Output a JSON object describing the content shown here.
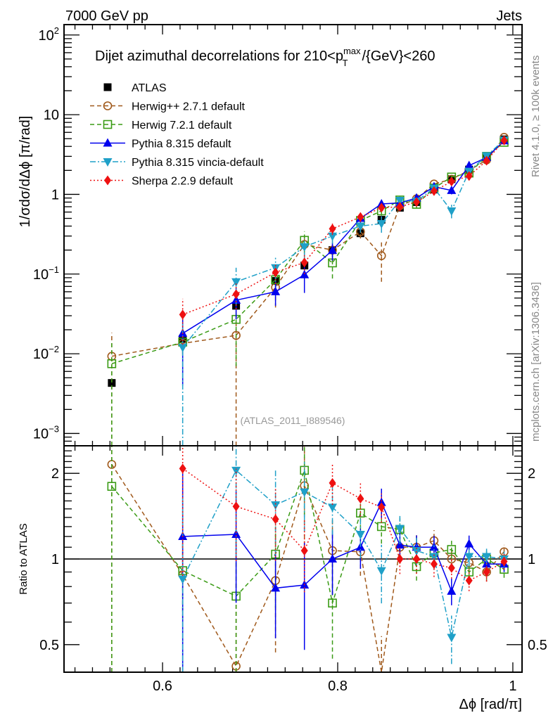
{
  "chart_data": {
    "type": "scatter",
    "header_left": "7000 GeV pp",
    "header_right": "Jets",
    "title": "Dijet azimuthal decorrelations for 210<p",
    "title_sup": "max",
    "title_sub": "T",
    "title_tail": "/{GeV}<260",
    "analysis_label": "(ATLAS_2011_I889546)",
    "side_label_top": "Rivet 4.1.0, ≥ 100k events",
    "side_label_bottom": "mcplots.cern.ch [arXiv:1306.3436]",
    "ylabel": "1/σdσ/dΔϕ [π/rad]",
    "ratio_ylabel": "Ratio to ATLAS",
    "xlabel": "Δϕ [rad/π]",
    "xlim": [
      0.4875,
      1.0105
    ],
    "ylim": [
      0.0007,
      135
    ],
    "ratio_ylim": [
      0.4,
      2.5
    ],
    "yscale": "log",
    "ratio_yscale": "log",
    "x_ticks": [
      {
        "v": 0.6,
        "label": "0.6"
      },
      {
        "v": 0.8,
        "label": "0.8"
      },
      {
        "v": 1.0,
        "label": "1"
      }
    ],
    "y_ticks": [
      {
        "v": 100,
        "base": "10",
        "exp": "2"
      },
      {
        "v": 10,
        "base": "10",
        "exp": ""
      },
      {
        "v": 1,
        "base": "1",
        "exp": ""
      },
      {
        "v": 0.1,
        "base": "10",
        "exp": "−1"
      },
      {
        "v": 0.01,
        "base": "10",
        "exp": "−2"
      },
      {
        "v": 0.001,
        "base": "10",
        "exp": "−3"
      }
    ],
    "ratio_ticks": [
      {
        "v": 2,
        "label": "2"
      },
      {
        "v": 1,
        "label": "1"
      },
      {
        "v": 0.5,
        "label": "0.5"
      }
    ],
    "x": [
      0.542,
      0.623,
      0.684,
      0.729,
      0.762,
      0.794,
      0.826,
      0.85,
      0.871,
      0.89,
      0.91,
      0.93,
      0.95,
      0.97,
      0.99
    ],
    "series": [
      {
        "name": "ATLAS",
        "color": "#000000",
        "marker": "square-filled",
        "line": "none",
        "values": [
          0.0043,
          0.0154,
          0.04,
          0.082,
          0.128,
          0.2,
          0.325,
          0.48,
          0.68,
          0.8,
          1.15,
          1.55,
          2.05,
          2.95,
          4.9
        ],
        "errors": [
          0.0004,
          0.001,
          0.003,
          0.005,
          0.008,
          0.012,
          0.02,
          0.03,
          0.04,
          0.04,
          0.05,
          0.07,
          0.09,
          0.12,
          0.2
        ]
      },
      {
        "name": "Herwig++ 2.7.1 default",
        "color": "#a0591b",
        "marker": "circle-open",
        "line": "dashed",
        "values": [
          0.0093,
          0.0135,
          0.017,
          0.068,
          0.235,
          0.2,
          0.34,
          0.17,
          0.72,
          0.88,
          1.35,
          1.55,
          2.0,
          2.7,
          5.2
        ],
        "errors": [
          0.009,
          0.004,
          0.017,
          0.03,
          0.09,
          0.06,
          0.06,
          0.09,
          0.09,
          0.09,
          0.12,
          0.12,
          0.15,
          0.2,
          0.3
        ]
      },
      {
        "name": "Herwig 7.2.1 default",
        "color": "#3a9b15",
        "marker": "square-open",
        "line": "dashed",
        "values": [
          0.0075,
          0.014,
          0.027,
          0.085,
          0.265,
          0.138,
          0.47,
          0.62,
          0.85,
          0.75,
          1.2,
          1.65,
          1.85,
          3.0,
          4.5
        ],
        "errors": [
          0.007,
          0.004,
          0.02,
          0.03,
          0.08,
          0.05,
          0.08,
          0.08,
          0.08,
          0.08,
          0.1,
          0.12,
          0.15,
          0.2,
          0.3
        ]
      },
      {
        "name": "Pythia 8.315 default",
        "color": "#0000ee",
        "marker": "triangle-up",
        "line": "solid",
        "values": [
          null,
          0.018,
          0.047,
          0.06,
          0.098,
          0.198,
          0.5,
          0.76,
          0.78,
          0.9,
          1.25,
          1.12,
          2.3,
          2.9,
          4.7
        ],
        "errors": [
          null,
          0.014,
          0.02,
          0.02,
          0.04,
          0.05,
          0.08,
          0.09,
          0.09,
          0.09,
          0.12,
          0.12,
          0.16,
          0.2,
          0.3
        ]
      },
      {
        "name": "Pythia 8.315 vincia-default",
        "color": "#1fa0c8",
        "marker": "triangle-down",
        "line": "dashdot",
        "values": [
          null,
          0.012,
          0.08,
          0.12,
          0.22,
          0.3,
          0.4,
          0.43,
          0.84,
          0.82,
          1.2,
          0.62,
          1.95,
          3.05,
          4.8
        ],
        "errors": [
          null,
          0.012,
          0.04,
          0.04,
          0.06,
          0.06,
          0.07,
          0.1,
          0.1,
          0.09,
          0.12,
          0.12,
          0.15,
          0.2,
          0.3
        ]
      },
      {
        "name": "Sherpa 2.2.9 default",
        "color": "#ee1111",
        "marker": "diamond",
        "line": "dotted",
        "values": [
          null,
          0.031,
          0.056,
          0.105,
          0.14,
          0.37,
          0.52,
          0.68,
          0.7,
          0.8,
          1.1,
          1.45,
          1.7,
          2.65,
          4.75
        ],
        "errors": [
          null,
          0.018,
          0.02,
          0.03,
          0.04,
          0.06,
          0.07,
          0.08,
          0.08,
          0.09,
          0.11,
          0.12,
          0.14,
          0.2,
          0.3
        ]
      }
    ],
    "ratios": [
      {
        "name": "Herwig++ 2.7.1 default",
        "values": [
          2.15,
          0.88,
          0.42,
          0.84,
          1.81,
          1.07,
          1.06,
          0.35,
          1.1,
          1.1,
          1.16,
          1.0,
          0.97,
          0.9,
          1.06
        ]
      },
      {
        "name": "Herwig 7.2.1 default",
        "values": [
          1.8,
          0.91,
          0.74,
          1.04,
          2.05,
          0.7,
          1.45,
          1.3,
          1.27,
          0.94,
          1.05,
          1.08,
          0.9,
          1.0,
          0.92
        ]
      },
      {
        "name": "Pythia 8.315 default",
        "values": [
          null,
          1.2,
          1.22,
          0.79,
          0.81,
          1.0,
          1.1,
          1.58,
          1.12,
          1.1,
          1.1,
          0.77,
          1.13,
          0.96,
          0.96
        ]
      },
      {
        "name": "Pythia 8.315 vincia-default",
        "values": [
          null,
          0.85,
          2.05,
          1.55,
          1.72,
          1.52,
          1.22,
          0.91,
          1.28,
          1.07,
          1.02,
          0.53,
          1.02,
          1.02,
          1.0
        ]
      },
      {
        "name": "Sherpa 2.2.9 default",
        "values": [
          null,
          2.08,
          1.53,
          1.38,
          1.07,
          1.85,
          1.63,
          1.52,
          1.0,
          1.0,
          0.96,
          0.93,
          0.84,
          0.9,
          0.98
        ]
      }
    ],
    "legend_position": "top-left",
    "grid": false
  }
}
